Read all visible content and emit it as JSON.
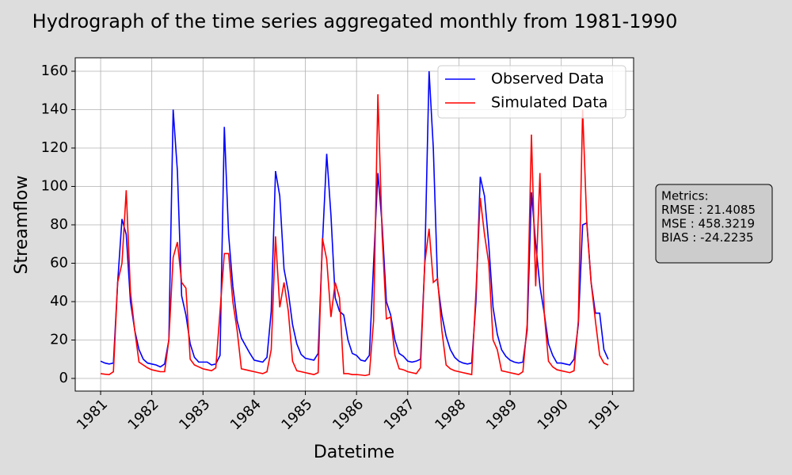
{
  "chart_data": {
    "type": "line",
    "title": "Hydrograph of the time series aggregated monthly from 1981-1990",
    "xlabel": "Datetime",
    "ylabel": "Streamflow",
    "annotation": [
      "Metrics:",
      "RMSE : 21.4085",
      "MSE : 458.3219",
      "BIAS : -24.2235"
    ],
    "x": [
      1981,
      1981.083,
      1981.167,
      1981.25,
      1981.333,
      1981.417,
      1981.5,
      1981.583,
      1981.667,
      1981.75,
      1981.833,
      1981.917,
      1982,
      1982.083,
      1982.167,
      1982.25,
      1982.333,
      1982.417,
      1982.5,
      1982.583,
      1982.667,
      1982.75,
      1982.833,
      1982.917,
      1983,
      1983.083,
      1983.167,
      1983.25,
      1983.333,
      1983.417,
      1983.5,
      1983.583,
      1983.667,
      1983.75,
      1983.833,
      1983.917,
      1984,
      1984.083,
      1984.167,
      1984.25,
      1984.333,
      1984.417,
      1984.5,
      1984.583,
      1984.667,
      1984.75,
      1984.833,
      1984.917,
      1985,
      1985.083,
      1985.167,
      1985.25,
      1985.333,
      1985.417,
      1985.5,
      1985.583,
      1985.667,
      1985.75,
      1985.833,
      1985.917,
      1986,
      1986.083,
      1986.167,
      1986.25,
      1986.333,
      1986.417,
      1986.5,
      1986.583,
      1986.667,
      1986.75,
      1986.833,
      1986.917,
      1987,
      1987.083,
      1987.167,
      1987.25,
      1987.333,
      1987.417,
      1987.5,
      1987.583,
      1987.667,
      1987.75,
      1987.833,
      1987.917,
      1988,
      1988.083,
      1988.167,
      1988.25,
      1988.333,
      1988.417,
      1988.5,
      1988.583,
      1988.667,
      1988.75,
      1988.833,
      1988.917,
      1989,
      1989.083,
      1989.167,
      1989.25,
      1989.333,
      1989.417,
      1989.5,
      1989.583,
      1989.667,
      1989.75,
      1989.833,
      1989.917,
      1990,
      1990.083,
      1990.167,
      1990.25,
      1990.333,
      1990.417,
      1990.5,
      1990.583,
      1990.667,
      1990.75,
      1990.833,
      1990.917
    ],
    "series": [
      {
        "name": "Observed Data",
        "color": "#0000ff",
        "values": [
          9,
          8,
          7.5,
          8,
          50,
          83,
          75,
          40,
          25,
          15,
          10,
          8,
          7.5,
          7,
          6,
          7.5,
          20,
          140,
          108,
          43,
          33,
          18,
          11,
          8.5,
          8.5,
          8.5,
          7,
          7.5,
          12,
          131,
          75,
          48,
          30,
          21,
          17,
          13,
          9.5,
          9,
          8.5,
          11,
          35,
          108,
          95,
          57,
          45,
          28,
          18,
          12.5,
          10.5,
          10,
          9.5,
          13,
          70,
          117,
          85,
          42,
          35,
          33,
          20,
          13,
          12,
          9.5,
          9,
          12,
          60,
          107,
          80,
          40,
          33,
          20,
          13,
          11.5,
          9,
          8.5,
          9,
          10,
          60,
          160,
          120,
          50,
          33,
          22,
          15,
          11,
          9,
          8,
          7.5,
          8,
          40,
          105,
          95,
          70,
          37,
          23,
          15,
          11.5,
          9.5,
          8.5,
          8,
          8.5,
          25,
          97,
          70,
          48,
          34,
          18,
          12,
          8,
          8,
          7.5,
          7,
          10,
          28,
          80,
          81,
          50,
          34,
          34,
          15,
          10
        ]
      },
      {
        "name": "Simulated Data",
        "color": "#ff0000",
        "values": [
          2.5,
          2.2,
          2,
          3.5,
          50,
          60,
          98,
          45,
          25,
          8.5,
          7,
          5.5,
          4.5,
          4,
          3.5,
          3.5,
          20,
          63,
          71,
          50,
          47,
          10,
          7,
          6,
          5,
          4.5,
          4,
          5.5,
          35,
          65,
          65,
          40,
          25,
          5,
          4.5,
          4,
          3.5,
          3,
          2.5,
          3.5,
          15,
          74,
          37,
          50,
          35,
          9,
          4,
          3.5,
          3,
          2.5,
          2,
          3,
          73,
          62,
          32,
          50,
          42,
          2.5,
          2.5,
          2,
          2,
          1.8,
          1.5,
          2,
          30,
          148,
          75,
          31,
          32,
          12,
          5,
          4.5,
          3.5,
          3,
          2.5,
          5.5,
          60,
          78,
          50,
          52,
          25,
          7,
          5,
          4,
          3.5,
          3,
          2.5,
          2,
          45,
          94,
          75,
          60,
          20,
          15,
          4,
          3.5,
          3,
          2.5,
          2,
          3.5,
          28,
          127,
          48,
          107,
          34,
          9,
          6,
          4.5,
          4,
          3.5,
          3,
          4,
          30,
          140,
          80,
          50,
          30,
          12,
          8,
          7
        ]
      }
    ],
    "xlim": [
      1980.504,
      1991.413
    ],
    "xticks": [
      1981,
      1982,
      1983,
      1984,
      1985,
      1986,
      1987,
      1988,
      1989,
      1990,
      1991
    ],
    "ylim": [
      -6.6,
      167
    ],
    "yticks": [
      0,
      20,
      40,
      60,
      80,
      100,
      120,
      140,
      160
    ],
    "grid": true,
    "legend": "upper right"
  }
}
